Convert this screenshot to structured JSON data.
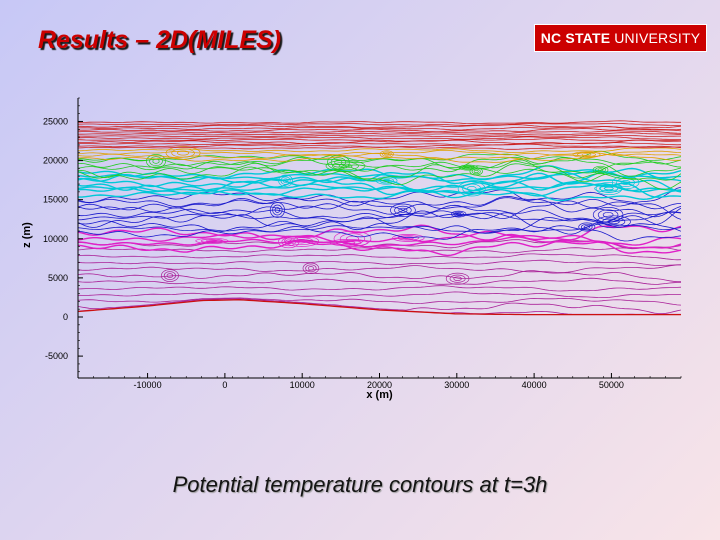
{
  "slide": {
    "title": "Results – 2D(MILES)",
    "caption": "Potential temperature contours at t=3h"
  },
  "logo": {
    "bold": "NC STATE",
    "regular": "UNIVERSITY",
    "color": "#cc0000"
  },
  "chart_data": {
    "type": "contour",
    "title": "",
    "xlabel": "x (m)",
    "ylabel": "z (m)",
    "xlim": [
      -19000,
      59000
    ],
    "ylim": [
      -7800,
      28000
    ],
    "x_ticks": [
      -10000,
      0,
      10000,
      20000,
      30000,
      40000,
      50000
    ],
    "y_ticks": [
      -5000,
      0,
      5000,
      10000,
      15000,
      20000,
      25000
    ],
    "x_tick_labels": [
      "-10000",
      "0",
      "10000",
      "20000",
      "30000",
      "40000",
      "50000"
    ],
    "y_tick_labels": [
      "-5000",
      "0",
      "5000",
      "10000",
      "15000",
      "20000",
      "25000"
    ],
    "grid": false,
    "legend": false,
    "terrain": [
      [
        -19000,
        700
      ],
      [
        -10000,
        1400
      ],
      [
        -3000,
        2100
      ],
      [
        2000,
        2200
      ],
      [
        10000,
        1700
      ],
      [
        20000,
        900
      ],
      [
        30000,
        400
      ],
      [
        40000,
        300
      ],
      [
        50000,
        300
      ],
      [
        59000,
        300
      ]
    ],
    "contour_bands": [
      {
        "name": "lower",
        "color": "#aa2299",
        "z_min": 0,
        "z_max": 9800,
        "levels": 12,
        "turbulence": "medium"
      },
      {
        "name": "magenta-layer",
        "color": "#e020c8",
        "z_min": 8600,
        "z_max": 11000,
        "levels": 4,
        "turbulence": "high"
      },
      {
        "name": "mid",
        "color": "#1a1acc",
        "z_min": 10500,
        "z_max": 15500,
        "levels": 10,
        "turbulence": "high"
      },
      {
        "name": "cyan-layer",
        "color": "#00c8d8",
        "z_min": 15500,
        "z_max": 18500,
        "levels": 8,
        "turbulence": "high"
      },
      {
        "name": "green-layer",
        "color": "#22cc22",
        "z_min": 18000,
        "z_max": 20500,
        "levels": 6,
        "turbulence": "high"
      },
      {
        "name": "yellow-orange",
        "color": "#e0a000",
        "z_min": 20000,
        "z_max": 21500,
        "levels": 4,
        "turbulence": "medium"
      },
      {
        "name": "upper",
        "color": "#cc2020",
        "z_min": 21500,
        "z_max": 25000,
        "levels": 14,
        "turbulence": "low"
      }
    ]
  }
}
